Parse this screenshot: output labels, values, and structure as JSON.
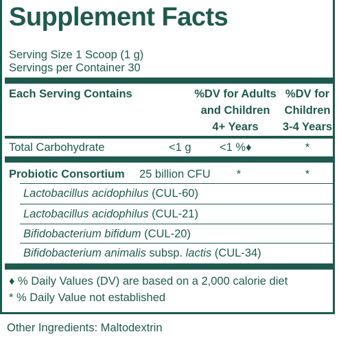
{
  "title": "Supplement Facts",
  "serving_size": "Serving Size 1 Scoop (1 g)",
  "servings_per_container": "Servings per Container 30",
  "header": {
    "col1": "Each Serving Contains",
    "col2_line1": "%DV for Adults",
    "col2_line2": "and Children",
    "col2_line3": "4+ Years",
    "col3_line1": "%DV for",
    "col3_line2": "Children",
    "col3_line3": "3-4 Years"
  },
  "carb": {
    "name": "Total Carbohydrate",
    "amount": "<1 g",
    "dv_adult": "<1 %♦",
    "dv_child": "*"
  },
  "probiotic": {
    "name": "Probiotic Consortium",
    "amount": "25 billion CFU",
    "dv_adult": "*",
    "dv_child": "*"
  },
  "strains": [
    {
      "species": "Lactobacillus acidophilus",
      "extra": "",
      "sub": "",
      "code": " (CUL-60)"
    },
    {
      "species": "Lactobacillus acidophilus",
      "extra": "",
      "sub": "",
      "code": " (CUL-21)"
    },
    {
      "species": "Bifidobacterium bifidum",
      "extra": "",
      "sub": "",
      "code": " (CUL-20)"
    },
    {
      "species": "Bifidobacterium animalis",
      "extra": " subsp. ",
      "sub": "lactis",
      "code": " (CUL-34)"
    }
  ],
  "footnote_dv": "♦ % Daily Values (DV) are based on a 2,000 calorie diet",
  "footnote_star": "* % Daily Value not established",
  "other_ingredients": "Other Ingredients: Maltodextrin"
}
